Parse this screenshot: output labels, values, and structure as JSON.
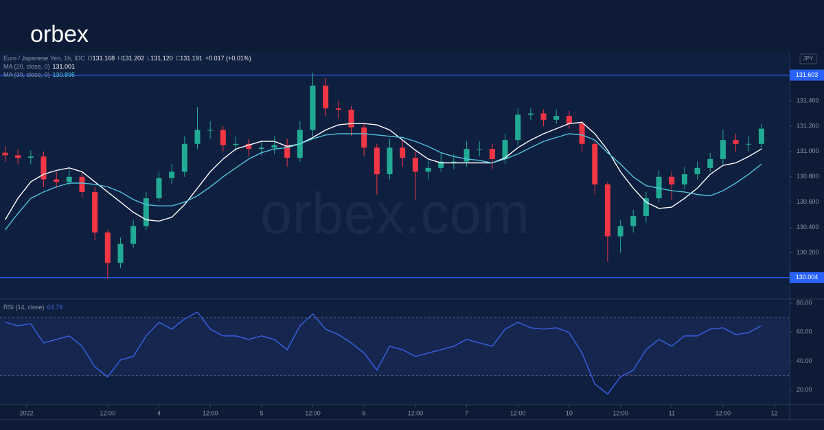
{
  "logo": "orbex",
  "watermark": "orbex.com",
  "currency": "JPY",
  "chart_data": [
    {
      "type": "candlestick",
      "title": "Euro / Japanese Yen, 1h, IDC",
      "ohlc": [
        {
          "label": "O",
          "value": "131.168"
        },
        {
          "label": "H",
          "value": "131.202"
        },
        {
          "label": "L",
          "value": "131.120"
        },
        {
          "label": "C",
          "value": "131.191"
        }
      ],
      "change": "+0.017 (+0.01%)",
      "up_color": "#22ab94",
      "down_color": "#f23645",
      "xlim": [
        -13.2,
        171.6
      ],
      "xticks": [
        {
          "value": -7,
          "label": "2022"
        },
        {
          "value": 12,
          "label": "12:00"
        },
        {
          "value": 24,
          "label": "4"
        },
        {
          "value": 36,
          "label": "12:00"
        },
        {
          "value": 48,
          "label": "5"
        },
        {
          "value": 60,
          "label": "12:00"
        },
        {
          "value": 72,
          "label": "6"
        },
        {
          "value": 84,
          "label": "12:00"
        },
        {
          "value": 96,
          "label": "7"
        },
        {
          "value": 108,
          "label": "12:00"
        },
        {
          "value": 120,
          "label": "10"
        },
        {
          "value": 132,
          "label": "12:00"
        },
        {
          "value": 144,
          "label": "11"
        },
        {
          "value": 156,
          "label": "12:00"
        },
        {
          "value": 168,
          "label": "12"
        }
      ],
      "ylim": [
        129.84,
        131.79
      ],
      "yticks": [
        {
          "value": 130.2,
          "label": "130.200"
        },
        {
          "value": 130.4,
          "label": "130.400"
        },
        {
          "value": 130.6,
          "label": "130.600"
        },
        {
          "value": 130.8,
          "label": "130.800"
        },
        {
          "value": 131,
          "label": "131.000"
        },
        {
          "value": 131.2,
          "label": "131.200"
        },
        {
          "value": 131.4,
          "label": "131.400"
        }
      ],
      "hlines": [
        {
          "value": 131.603,
          "label": "131.603",
          "color": "#2962ff"
        },
        {
          "value": 130.004,
          "label": "130.004",
          "color": "#2962ff"
        }
      ],
      "x": [
        -12,
        -9,
        -6,
        -3,
        0,
        3,
        6,
        9,
        12,
        15,
        18,
        21,
        24,
        27,
        30,
        33,
        36,
        39,
        42,
        45,
        48,
        51,
        54,
        57,
        60,
        63,
        66,
        69,
        72,
        75,
        78,
        81,
        84,
        87,
        90,
        93,
        96,
        99,
        102,
        105,
        108,
        111,
        114,
        117,
        120,
        123,
        126,
        129,
        132,
        135,
        138,
        141,
        144,
        147,
        150,
        153,
        156,
        159,
        162,
        165
      ],
      "open": [
        130.99,
        130.97,
        130.95,
        130.96,
        130.78,
        130.76,
        130.8,
        130.68,
        130.36,
        130.12,
        130.27,
        130.41,
        130.63,
        130.79,
        130.84,
        131.06,
        131.17,
        131.17,
        131.05,
        131.06,
        131.02,
        131.03,
        131.05,
        130.95,
        131.17,
        131.52,
        131.34,
        131.33,
        131.19,
        131.03,
        130.82,
        131.03,
        130.95,
        130.84,
        130.87,
        130.92,
        130.92,
        131.02,
        131.02,
        130.94,
        131.09,
        131.29,
        131.3,
        131.25,
        131.28,
        131.22,
        131.06,
        130.74,
        130.33,
        130.41,
        130.49,
        130.63,
        130.8,
        130.74,
        130.82,
        130.87,
        130.94,
        131.09,
        131.06,
        131.06
      ],
      "high": [
        131.04,
        131.02,
        131.01,
        131.0,
        130.84,
        130.86,
        130.84,
        130.72,
        130.38,
        130.32,
        130.46,
        130.68,
        130.84,
        130.9,
        131.12,
        131.35,
        131.24,
        131.2,
        131.12,
        131.1,
        131.08,
        131.12,
        131.1,
        131.24,
        131.62,
        131.58,
        131.4,
        131.36,
        131.22,
        131.06,
        131.1,
        131.08,
        131.0,
        130.93,
        130.98,
        130.98,
        131.08,
        131.08,
        131.06,
        131.14,
        131.34,
        131.34,
        131.33,
        131.33,
        131.32,
        131.24,
        131.08,
        130.76,
        130.46,
        130.54,
        130.68,
        130.85,
        130.84,
        130.88,
        130.92,
        130.99,
        131.17,
        131.14,
        131.12,
        131.22
      ],
      "low": [
        130.92,
        130.9,
        130.9,
        130.72,
        130.71,
        130.73,
        130.64,
        130.3,
        130.0,
        130.08,
        130.24,
        130.38,
        130.6,
        130.74,
        130.8,
        131.02,
        131.1,
        131.0,
        131.0,
        130.96,
        130.97,
        130.98,
        130.88,
        130.92,
        131.12,
        131.28,
        131.26,
        131.12,
        130.96,
        130.66,
        130.78,
        130.88,
        130.62,
        130.78,
        130.84,
        130.86,
        130.88,
        130.96,
        130.86,
        130.9,
        131.05,
        131.25,
        131.2,
        131.22,
        131.18,
        131.0,
        130.66,
        130.13,
        130.2,
        130.36,
        130.44,
        130.6,
        130.62,
        130.7,
        130.78,
        130.84,
        130.9,
        131.0,
        131.0,
        131.02
      ],
      "close": [
        130.97,
        130.95,
        130.96,
        130.78,
        130.76,
        130.8,
        130.68,
        130.36,
        130.12,
        130.27,
        130.41,
        130.63,
        130.79,
        130.84,
        131.06,
        131.17,
        131.17,
        131.05,
        131.06,
        131.02,
        131.03,
        131.05,
        130.95,
        131.17,
        131.52,
        131.34,
        131.33,
        131.19,
        131.03,
        130.82,
        131.03,
        130.95,
        130.84,
        130.87,
        130.92,
        130.92,
        131.02,
        131.02,
        130.94,
        131.09,
        131.29,
        131.3,
        131.25,
        131.28,
        131.22,
        131.06,
        130.74,
        130.33,
        130.41,
        130.49,
        130.63,
        130.8,
        130.74,
        130.82,
        130.87,
        130.94,
        131.09,
        131.06,
        131.06,
        131.18
      ],
      "series": [
        {
          "name": "MA (20, close, 0)",
          "color": "#ffffff",
          "last": "131.001",
          "values": [
            130.46,
            130.63,
            130.76,
            130.82,
            130.85,
            130.87,
            130.84,
            130.76,
            130.68,
            130.6,
            130.52,
            130.46,
            130.45,
            130.48,
            130.58,
            130.71,
            130.84,
            130.94,
            131.02,
            131.05,
            131.08,
            131.08,
            131.04,
            131.06,
            131.11,
            131.17,
            131.21,
            131.22,
            131.22,
            131.21,
            131.17,
            131.09,
            131.01,
            130.94,
            130.91,
            130.91,
            130.91,
            130.91,
            130.91,
            130.95,
            131.03,
            131.09,
            131.14,
            131.18,
            131.22,
            131.23,
            131.14,
            131.01,
            130.84,
            130.71,
            130.6,
            130.55,
            130.56,
            130.63,
            130.71,
            130.82,
            130.89,
            130.91,
            130.96,
            131.02
          ]
        },
        {
          "name": "MA (30, close, 0)",
          "color": "#4fc3dc",
          "last": "130.895",
          "values": [
            130.38,
            130.51,
            130.63,
            130.68,
            130.72,
            130.75,
            130.75,
            130.74,
            130.72,
            130.68,
            130.62,
            130.58,
            130.57,
            130.57,
            130.6,
            130.65,
            130.72,
            130.8,
            130.87,
            130.94,
            130.99,
            131.02,
            131.03,
            131.06,
            131.1,
            131.13,
            131.14,
            131.14,
            131.14,
            131.13,
            131.12,
            131.11,
            131.08,
            131.04,
            130.99,
            130.96,
            130.94,
            130.93,
            130.91,
            130.94,
            130.98,
            131.03,
            131.08,
            131.11,
            131.14,
            131.13,
            131.09,
            130.99,
            130.9,
            130.8,
            130.73,
            130.71,
            130.69,
            130.68,
            130.66,
            130.65,
            130.69,
            130.75,
            130.82,
            130.9
          ]
        }
      ]
    },
    {
      "type": "line",
      "xlim": [
        -13.2,
        171.6
      ],
      "x": [
        -12,
        -9,
        -6,
        -3,
        0,
        3,
        6,
        9,
        12,
        15,
        18,
        21,
        24,
        27,
        30,
        33,
        36,
        39,
        42,
        45,
        48,
        51,
        54,
        57,
        60,
        63,
        66,
        69,
        72,
        75,
        78,
        81,
        84,
        87,
        90,
        93,
        96,
        99,
        102,
        105,
        108,
        111,
        114,
        117,
        120,
        123,
        126,
        129,
        132,
        135,
        138,
        141,
        144,
        147,
        150,
        153,
        156,
        159,
        162,
        165
      ],
      "ylim": [
        10,
        82.4
      ],
      "yticks": [
        {
          "value": 20,
          "label": "20.00"
        },
        {
          "value": 40,
          "label": "40.00"
        },
        {
          "value": 60,
          "label": "60.00"
        },
        {
          "value": 80,
          "label": "80.00"
        }
      ],
      "bands": [
        30,
        70
      ],
      "series": [
        {
          "name": "RSI (14, close)",
          "color": "#3a62e8",
          "last": "64.79",
          "values": [
            66.8,
            64.4,
            65.8,
            52.6,
            55,
            57.4,
            50.3,
            36.1,
            29.1,
            40.8,
            43.2,
            57.4,
            66.8,
            62.1,
            69.2,
            73.9,
            62.1,
            57.4,
            57.4,
            55,
            57.4,
            55,
            47.9,
            64.4,
            72.5,
            62.1,
            58.3,
            52.6,
            45.6,
            33.8,
            50.3,
            47.9,
            43.2,
            45.6,
            47.9,
            50.3,
            55,
            52.6,
            50.3,
            62.1,
            66.8,
            63,
            62.1,
            63,
            59.7,
            45.6,
            24.3,
            17.3,
            29.1,
            33.8,
            47.9,
            55,
            50.3,
            57.4,
            57.4,
            62.1,
            63,
            58.3,
            59.7,
            64.4
          ]
        }
      ]
    }
  ]
}
